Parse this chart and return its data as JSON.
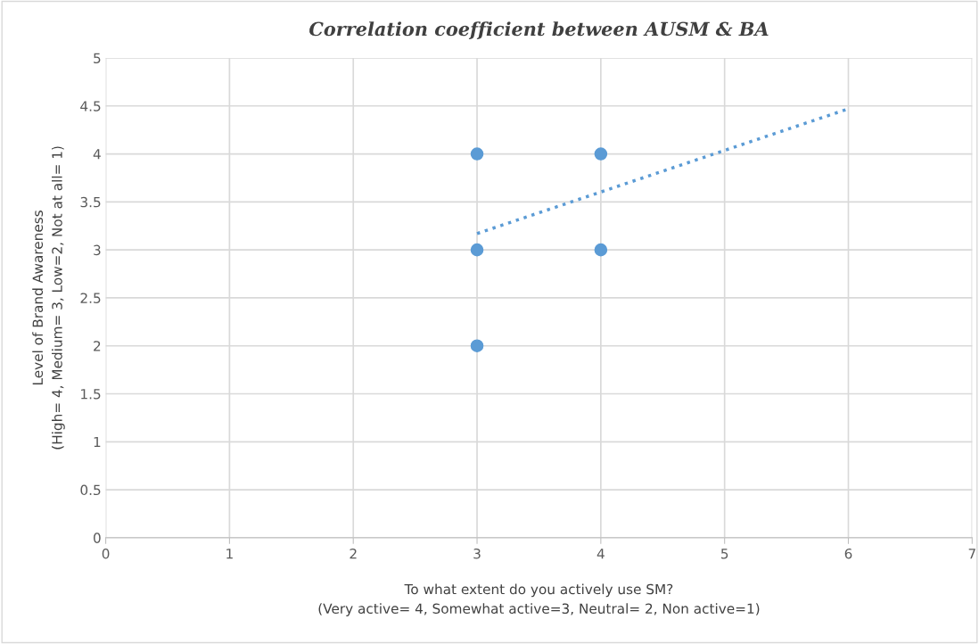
{
  "chart_data": {
    "type": "scatter",
    "title": "Correlation coefficient between AUSM & BA",
    "xlabel": "To what extent do you actively use SM?\n(Very active= 4, Somewhat active=3, Neutral= 2, Non active=1)",
    "ylabel": "Level of Brand Awareness\n(High= 4, Medium= 3, Low=2, Not at all= 1)",
    "series": [
      {
        "color": "#5b9bd5",
        "x": [
          3,
          3,
          3,
          4,
          4
        ],
        "values": [
          4,
          3,
          2,
          4,
          3
        ],
        "marker": "circle"
      },
      {
        "type": "line",
        "color": "#5b9bd5",
        "x": [
          3,
          6
        ],
        "values": [
          3.17,
          4.47
        ],
        "line_style": "dotted",
        "marker": "none"
      }
    ],
    "xlim": [
      0,
      7
    ],
    "xticks": [
      0,
      1,
      2,
      3,
      4,
      5,
      6,
      7
    ],
    "ylim": [
      0,
      5
    ],
    "yticks": [
      0,
      0.5,
      1,
      1.5,
      2,
      2.5,
      3,
      3.5,
      4,
      4.5,
      5
    ],
    "grid": true,
    "legend": false
  }
}
